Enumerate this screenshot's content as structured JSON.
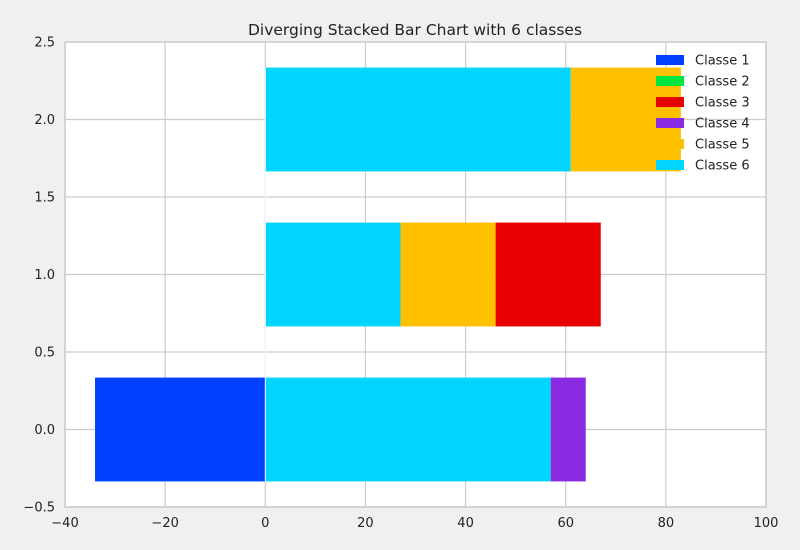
{
  "chart_data": {
    "type": "bar",
    "orientation": "horizontal",
    "stacking": "diverging",
    "title": "Diverging Stacked Bar Chart with 6 classes",
    "xlabel": "",
    "ylabel": "",
    "xlim": [
      -40,
      100
    ],
    "ylim": [
      -0.5,
      2.5
    ],
    "x_ticks": [
      -40,
      -20,
      0,
      20,
      40,
      60,
      80,
      100
    ],
    "y_ticks": [
      -0.5,
      0.0,
      0.5,
      1.0,
      1.5,
      2.0,
      2.5
    ],
    "grid": true,
    "legend_position": "top-right",
    "bar_positions": [
      0,
      1,
      2
    ],
    "series": [
      {
        "name": "Classe 1",
        "color": "#0040ff",
        "values": [
          -34,
          0,
          0
        ]
      },
      {
        "name": "Classe 2",
        "color": "#00e640",
        "values": [
          0,
          0,
          0
        ]
      },
      {
        "name": "Classe 3",
        "color": "#e60000",
        "values": [
          0,
          21,
          0
        ]
      },
      {
        "name": "Classe 4",
        "color": "#8a2be2",
        "values": [
          7,
          0,
          0
        ]
      },
      {
        "name": "Classe 5",
        "color": "#ffc000",
        "values": [
          0,
          19,
          22
        ]
      },
      {
        "name": "Classe 6",
        "color": "#00d5ff",
        "values": [
          57,
          27,
          61
        ]
      }
    ],
    "stack_order_positive": [
      "Classe 6",
      "Classe 5",
      "Classe 3",
      "Classe 4"
    ],
    "stack_order_negative": [
      "Classe 1"
    ]
  }
}
